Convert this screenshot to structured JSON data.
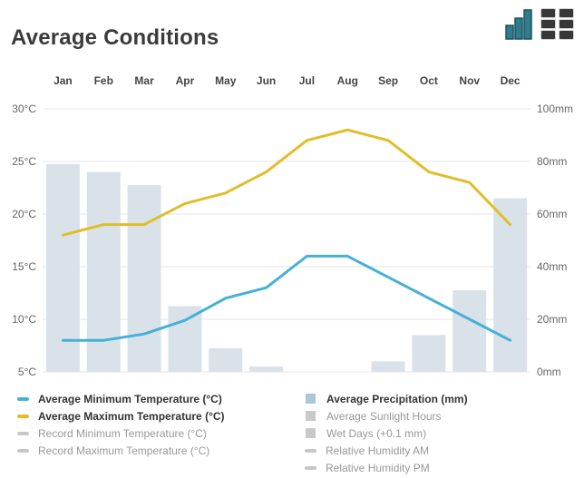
{
  "header": {
    "title": "Average Conditions"
  },
  "toolbar": {
    "icons": [
      {
        "name": "bar-chart-icon",
        "fill": "#2e7d8f",
        "stroke": "#1c525e"
      },
      {
        "name": "table-grid-icon",
        "fill": "#383838",
        "stroke": "#d4d4d4"
      }
    ]
  },
  "colors": {
    "min_temp_line": "#45b1d8",
    "max_temp_line": "#e2bd29",
    "precip_bar": "#dae2e9",
    "precip_legend": "#a9c7da",
    "inactive_marker": "#c7c7c7",
    "gridline": "#e6e6e6",
    "axis_text": "#666666",
    "month_text": "#444444",
    "title_text": "#3b3b3b"
  },
  "chart_data": {
    "type": "mixed",
    "title": "Average Conditions",
    "categories": [
      "Jan",
      "Feb",
      "Mar",
      "Apr",
      "May",
      "Jun",
      "Jul",
      "Aug",
      "Sep",
      "Oct",
      "Nov",
      "Dec"
    ],
    "x_labels_position": "top",
    "grid": true,
    "legend_position": "bottom",
    "left_axis": {
      "unit": "°C",
      "min": 5,
      "max": 30,
      "ticks": [
        "30°C",
        "25°C",
        "20°C",
        "15°C",
        "10°C",
        "5°C"
      ]
    },
    "right_axis": {
      "unit": "mm",
      "min": 0,
      "max": 100,
      "ticks": [
        "100mm",
        "80mm",
        "60mm",
        "40mm",
        "20mm",
        "0mm"
      ]
    },
    "series": [
      {
        "name": "Average Precipitation (mm)",
        "type": "bar",
        "axis": "right",
        "color": "#dae2e9",
        "values": [
          79,
          76,
          71,
          25,
          9,
          2,
          0,
          0,
          4,
          14,
          31,
          66
        ]
      },
      {
        "name": "Average Minimum Temperature (°C)",
        "type": "line",
        "axis": "left",
        "color": "#45b1d8",
        "values": [
          8,
          8,
          8.6,
          9.9,
          12,
          13,
          16,
          16,
          14,
          12,
          10,
          8
        ]
      },
      {
        "name": "Average Maximum Temperature (°C)",
        "type": "line",
        "axis": "left",
        "color": "#e2bd29",
        "values": [
          18,
          19,
          19,
          21,
          22,
          24,
          27,
          28,
          27,
          24,
          23,
          19
        ]
      }
    ]
  },
  "legend": {
    "left": [
      {
        "label": "Average Minimum Temperature (°C)",
        "marker": "line",
        "color": "#45b1d8",
        "active": true
      },
      {
        "label": "Average Maximum Temperature (°C)",
        "marker": "line",
        "color": "#e2bd29",
        "active": true
      },
      {
        "label": "Record Minimum Temperature (°C)",
        "marker": "line",
        "color": "#c7c7c7",
        "active": false
      },
      {
        "label": "Record Maximum Temperature (°C)",
        "marker": "line",
        "color": "#c7c7c7",
        "active": false
      }
    ],
    "right": [
      {
        "label": "Average Precipitation (mm)",
        "marker": "square",
        "color": "#a9c7da",
        "active": true
      },
      {
        "label": "Average Sunlight Hours",
        "marker": "square",
        "color": "#c9c9c9",
        "active": false
      },
      {
        "label": "Wet Days (+0.1 mm)",
        "marker": "square",
        "color": "#c9c9c9",
        "active": false
      },
      {
        "label": "Relative Humidity AM",
        "marker": "line",
        "color": "#c7c7c7",
        "active": false
      },
      {
        "label": "Relative Humidity PM",
        "marker": "line",
        "color": "#c7c7c7",
        "active": false
      }
    ]
  }
}
